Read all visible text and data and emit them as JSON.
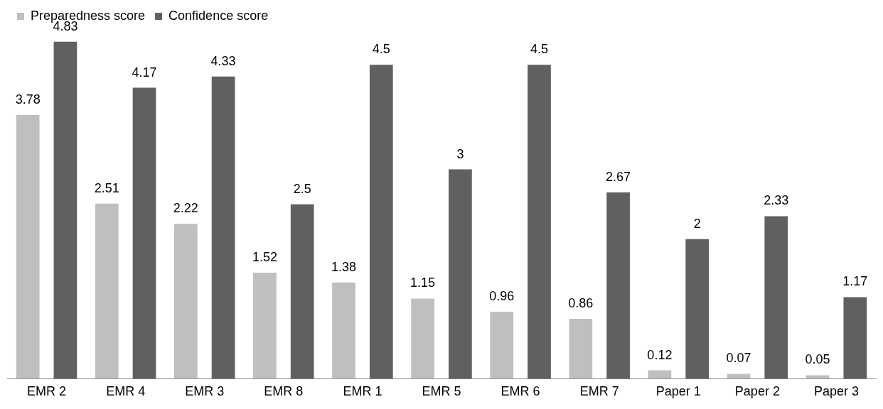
{
  "chart_data": {
    "type": "bar",
    "categories": [
      "EMR 2",
      "EMR 4",
      "EMR 3",
      "EMR 8",
      "EMR 1",
      "EMR 5",
      "EMR 6",
      "EMR 7",
      "Paper 1",
      "Paper 2",
      "Paper 3"
    ],
    "series": [
      {
        "name": "Preparedness score",
        "color": "#bfbfbf",
        "values": [
          3.78,
          2.51,
          2.22,
          1.52,
          1.38,
          1.15,
          0.96,
          0.86,
          0.12,
          0.07,
          0.05
        ]
      },
      {
        "name": "Confidence score",
        "color": "#606060",
        "values": [
          4.83,
          4.17,
          4.33,
          2.5,
          4.5,
          3,
          4.5,
          2.67,
          2,
          2.33,
          1.17
        ]
      }
    ],
    "data_labels": true,
    "legend": "top left",
    "grid": false
  }
}
